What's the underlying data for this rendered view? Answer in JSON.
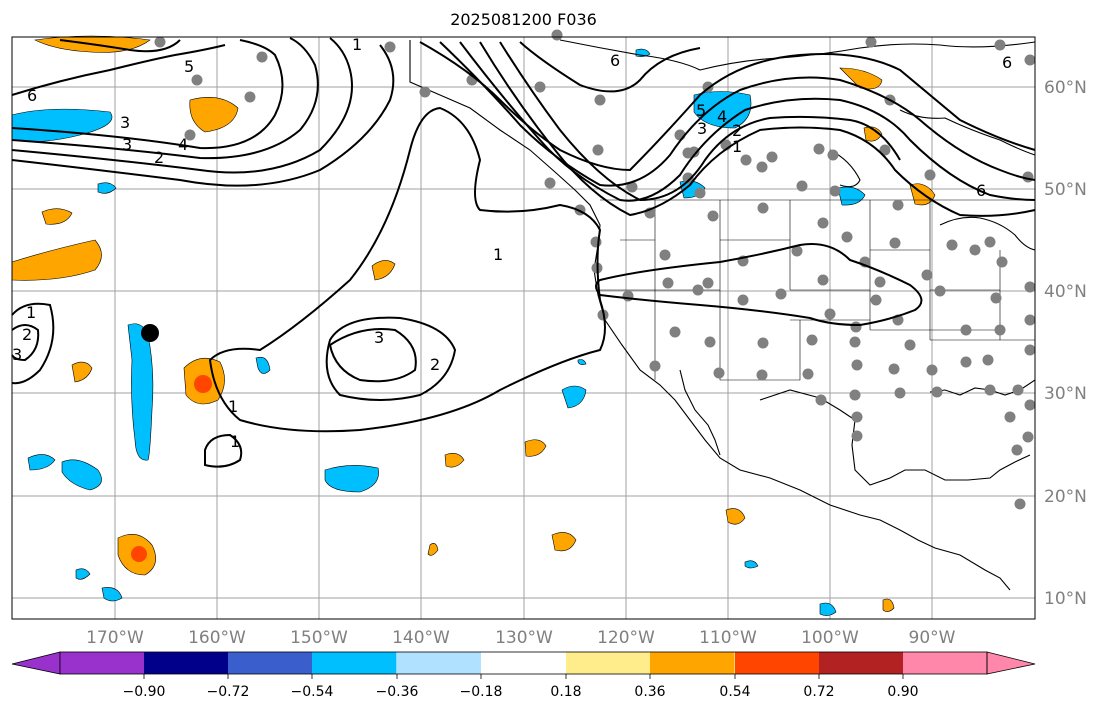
{
  "title": "2025081200 F036",
  "lon_labels": [
    "170°W",
    "160°W",
    "150°W",
    "140°W",
    "130°W",
    "120°W",
    "110°W",
    "100°W",
    "90°W"
  ],
  "lat_labels": [
    "60°N",
    "50°N",
    "40°N",
    "30°N",
    "20°N",
    "10°N"
  ],
  "colorbar": {
    "colors": [
      "#9932cc",
      "#00008b",
      "#3a5fcd",
      "#00bfff",
      "#b0e2ff",
      "#ffffff",
      "#ffec8b",
      "#ffa500",
      "#ff4500",
      "#b22222",
      "#ff88aa"
    ],
    "ticks": [
      "−0.90",
      "−0.72",
      "−0.54",
      "−0.36",
      "−0.18",
      "0.18",
      "0.36",
      "0.54",
      "0.72",
      "0.90"
    ]
  },
  "contour_labels": [
    "6",
    "5",
    "4",
    "3",
    "2",
    "1",
    "1",
    "3",
    "2",
    "1",
    "1",
    "2",
    "3",
    "6",
    "5",
    "4",
    "3",
    "2",
    "1",
    "1",
    "6",
    "6",
    "3",
    "2",
    "5",
    "4"
  ],
  "colors": {
    "stations": "#808080",
    "land_line": "#000000",
    "grid": "#a0a0a0",
    "orange": "#ffa500",
    "blue": "#00bfff",
    "red": "#ff4500"
  }
}
